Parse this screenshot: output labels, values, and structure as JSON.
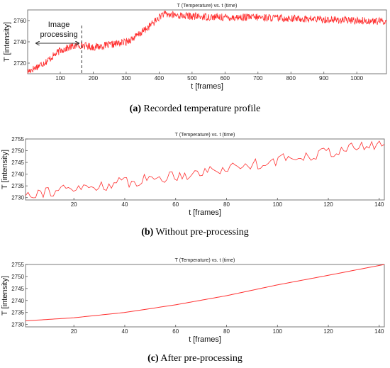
{
  "chart_data": [
    {
      "type": "line",
      "title": "T (Temperature)     vs.     t (time)",
      "xlabel": "t [frames]",
      "ylabel": "T [intensity]",
      "xlim": [
        1,
        1090
      ],
      "ylim": [
        2710,
        2770
      ],
      "xticks": [
        100,
        200,
        300,
        400,
        500,
        600,
        700,
        800,
        900,
        1000
      ],
      "yticks": [
        2720,
        2740,
        2760
      ],
      "noise": 3.5,
      "series": [
        {
          "x": [
            1,
            20,
            60,
            100,
            140,
            165,
            200,
            250,
            300,
            330,
            360,
            390,
            410,
            450,
            500,
            600,
            700,
            800,
            900,
            1000,
            1090
          ],
          "values": [
            2712,
            2715,
            2722,
            2732,
            2736,
            2737,
            2735,
            2737,
            2740,
            2745,
            2752,
            2760,
            2766,
            2765,
            2764,
            2763,
            2763,
            2762,
            2761,
            2760,
            2759
          ]
        }
      ],
      "annotations": {
        "text_line1": "Image",
        "text_line2": "processing",
        "marker_x": 165
      },
      "caption_label": "(a)",
      "caption_text": " Recorded temperature profile"
    },
    {
      "type": "line",
      "title": "T (Temperature)     vs.     t (time)",
      "xlabel": "t [frames]",
      "ylabel": "T [intensity]",
      "xlim": [
        1,
        142
      ],
      "ylim": [
        2729,
        2755
      ],
      "xticks": [
        20,
        40,
        60,
        80,
        100,
        120,
        140
      ],
      "yticks": [
        2730,
        2735,
        2740,
        2745,
        2750,
        2755
      ],
      "noise": 2.5,
      "series": [
        {
          "x": [
            1,
            20,
            40,
            60,
            80,
            100,
            120,
            142
          ],
          "values": [
            2732,
            2733.5,
            2736.5,
            2739.5,
            2742.5,
            2746,
            2749.5,
            2753
          ]
        }
      ],
      "caption_label": "(b)",
      "caption_text": " Without pre-processing"
    },
    {
      "type": "line",
      "title": "T (Temperature)     vs.     t (time)",
      "xlabel": "t [frames]",
      "ylabel": "T [intensity]",
      "xlim": [
        1,
        142
      ],
      "ylim": [
        2729,
        2755
      ],
      "xticks": [
        20,
        40,
        60,
        80,
        100,
        120,
        140
      ],
      "yticks": [
        2730,
        2735,
        2740,
        2745,
        2750,
        2755
      ],
      "noise": 0,
      "series": [
        {
          "x": [
            1,
            20,
            40,
            60,
            80,
            100,
            120,
            142
          ],
          "values": [
            2731.5,
            2732.8,
            2735,
            2738.2,
            2742,
            2746.5,
            2750.5,
            2755
          ]
        }
      ],
      "caption_label": "(c)",
      "caption_text": " After pre-processing"
    }
  ]
}
